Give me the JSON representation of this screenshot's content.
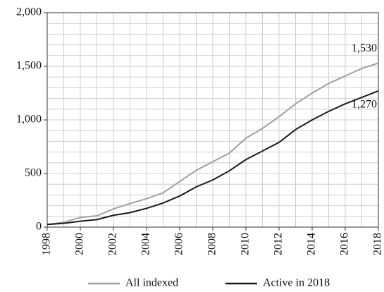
{
  "chart_data": {
    "type": "line",
    "x": [
      1998,
      1999,
      2000,
      2001,
      2002,
      2003,
      2004,
      2005,
      2006,
      2007,
      2008,
      2009,
      2010,
      2011,
      2012,
      2013,
      2014,
      2015,
      2016,
      2017,
      2018
    ],
    "series": [
      {
        "name": "All indexed",
        "color": "#a0a0a0",
        "values": [
          25,
          45,
          90,
          105,
          170,
          220,
          265,
          320,
          425,
          530,
          610,
          690,
          830,
          920,
          1030,
          1150,
          1250,
          1340,
          1410,
          1480,
          1530
        ],
        "value_labels": [
          null,
          null,
          null,
          null,
          null,
          null,
          null,
          null,
          null,
          null,
          null,
          null,
          null,
          null,
          null,
          null,
          null,
          null,
          null,
          null,
          "1,530"
        ]
      },
      {
        "name": "Active in 2018",
        "color": "#1a1a1a",
        "values": [
          25,
          35,
          55,
          70,
          110,
          135,
          175,
          225,
          290,
          375,
          440,
          525,
          630,
          710,
          790,
          910,
          1000,
          1080,
          1150,
          1210,
          1270
        ],
        "value_labels": [
          null,
          null,
          null,
          null,
          null,
          null,
          null,
          null,
          null,
          null,
          null,
          null,
          null,
          null,
          null,
          null,
          null,
          null,
          null,
          null,
          "1,270"
        ]
      }
    ],
    "xlim": [
      1998,
      2018
    ],
    "xticks": [
      1998,
      2000,
      2002,
      2004,
      2006,
      2008,
      2010,
      2012,
      2014,
      2016,
      2018
    ],
    "ylim": [
      0,
      2000
    ],
    "yticks": [
      0,
      500,
      {
        "value": 1000,
        "label": "1,000"
      },
      {
        "value": 1500,
        "label": "1,500"
      },
      {
        "value": 2000,
        "label": "2,000"
      }
    ],
    "yminor_ticks": [
      100,
      200,
      300,
      400,
      600,
      700,
      800,
      900,
      1100,
      1200,
      1300,
      1400,
      1600,
      1700,
      1800,
      1900
    ],
    "grid": true,
    "legend": "bottom"
  }
}
